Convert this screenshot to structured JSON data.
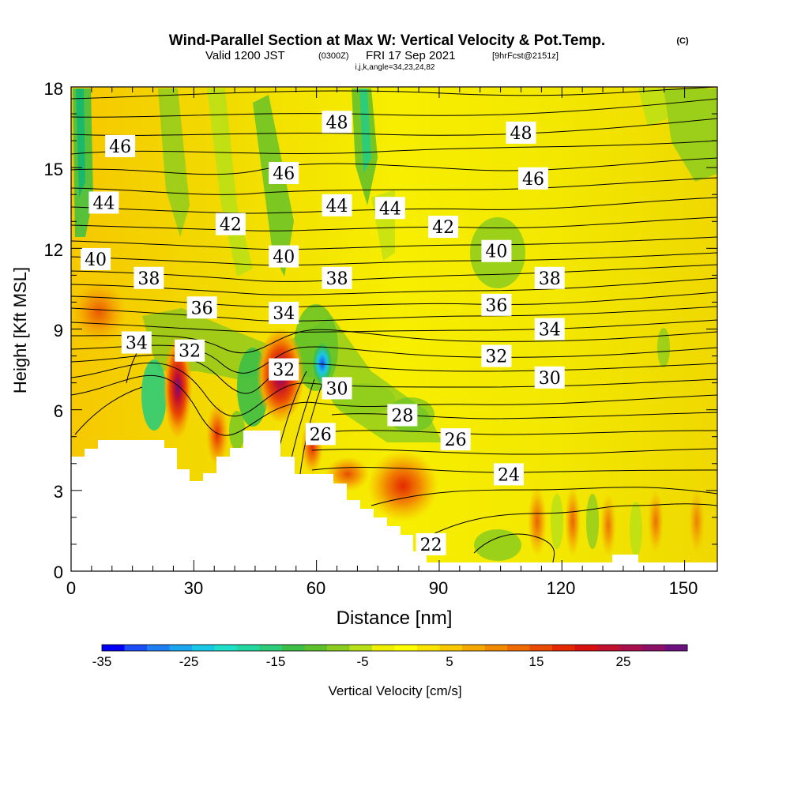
{
  "chart_data": {
    "type": "heatmap",
    "title": "Wind-Parallel Section at Max W: Vertical Velocity & Pot.Temp.",
    "title_mark": "(C)",
    "subtitle": {
      "valid": "Valid 1200 JST",
      "utc": "(0300Z)",
      "date": "FRI 17 Sep 2021",
      "fcst": "[9hrFcst@2151z]",
      "ijk": "i,j,k,angle=34,23,24,82"
    },
    "xlabel": "Distance [nm]",
    "ylabel": "Height [Kft MSL]",
    "xlim": [
      0,
      158
    ],
    "ylim": [
      0,
      18
    ],
    "x_ticks": [
      "0",
      "30",
      "60",
      "90",
      "120",
      "150"
    ],
    "y_ticks": [
      "0",
      "3",
      "6",
      "9",
      "12",
      "15",
      "18"
    ],
    "grid": false,
    "colorbar": {
      "label": "Vertical Velocity [cm/s]",
      "ticks": [
        "-35",
        "-25",
        "-15",
        "-5",
        "5",
        "15",
        "25"
      ],
      "colors": [
        "#0000f5",
        "#1a4df5",
        "#1f7ef2",
        "#1aa5ee",
        "#19c8e5",
        "#1ee0c8",
        "#22d8a0",
        "#2ecc78",
        "#3cbf46",
        "#5ec02b",
        "#8ccc1e",
        "#b8e018",
        "#eef000",
        "#ffff00",
        "#fbe400",
        "#f8c800",
        "#f5a800",
        "#f28a00",
        "#ef6a00",
        "#ea4a00",
        "#e42800",
        "#d81010",
        "#c2102e",
        "#a8104c",
        "#8c1066",
        "#6c1082"
      ]
    },
    "contour_series": {
      "name": "Potential temperature",
      "labels": [
        {
          "value": "46",
          "x": 12,
          "y": 15.8
        },
        {
          "value": "44",
          "x": 8,
          "y": 13.7
        },
        {
          "value": "42",
          "x": 39,
          "y": 12.9
        },
        {
          "value": "40",
          "x": 6,
          "y": 11.6
        },
        {
          "value": "38",
          "x": 19,
          "y": 10.9
        },
        {
          "value": "36",
          "x": 32,
          "y": 9.8
        },
        {
          "value": "34",
          "x": 16,
          "y": 8.5
        },
        {
          "value": "32",
          "x": 29,
          "y": 8.2
        },
        {
          "value": "48",
          "x": 65,
          "y": 16.7
        },
        {
          "value": "46",
          "x": 52,
          "y": 14.8
        },
        {
          "value": "44",
          "x": 65,
          "y": 13.6
        },
        {
          "value": "44",
          "x": 78,
          "y": 13.5
        },
        {
          "value": "40",
          "x": 52,
          "y": 11.7
        },
        {
          "value": "38",
          "x": 65,
          "y": 10.9
        },
        {
          "value": "34",
          "x": 52,
          "y": 9.6
        },
        {
          "value": "32",
          "x": 52,
          "y": 7.5
        },
        {
          "value": "30",
          "x": 65,
          "y": 6.8
        },
        {
          "value": "28",
          "x": 81,
          "y": 5.8
        },
        {
          "value": "26",
          "x": 61,
          "y": 5.1
        },
        {
          "value": "42",
          "x": 91,
          "y": 12.8
        },
        {
          "value": "48",
          "x": 110,
          "y": 16.3
        },
        {
          "value": "46",
          "x": 113,
          "y": 14.6
        },
        {
          "value": "40",
          "x": 104,
          "y": 11.9
        },
        {
          "value": "38",
          "x": 117,
          "y": 10.9
        },
        {
          "value": "36",
          "x": 104,
          "y": 9.9
        },
        {
          "value": "34",
          "x": 117,
          "y": 9.0
        },
        {
          "value": "32",
          "x": 104,
          "y": 8.0
        },
        {
          "value": "30",
          "x": 117,
          "y": 7.2
        },
        {
          "value": "26",
          "x": 94,
          "y": 4.9
        },
        {
          "value": "24",
          "x": 107,
          "y": 3.6
        },
        {
          "value": "22",
          "x": 88,
          "y": 1.0
        }
      ]
    },
    "velocity_cells": [
      {
        "x": 26,
        "y": 7.2,
        "w": 18,
        "h": 3.2
      },
      {
        "x": 52,
        "y": 7.8,
        "w": 18,
        "h": 3.6
      },
      {
        "x": 82,
        "y": 3.2,
        "w": 16,
        "h": 2.2
      },
      {
        "x": 3,
        "y": 10.5,
        "w": 10,
        "h": 2.4
      },
      {
        "x": 35,
        "y": 5.0,
        "w": 9,
        "h": 2.0
      }
    ]
  }
}
